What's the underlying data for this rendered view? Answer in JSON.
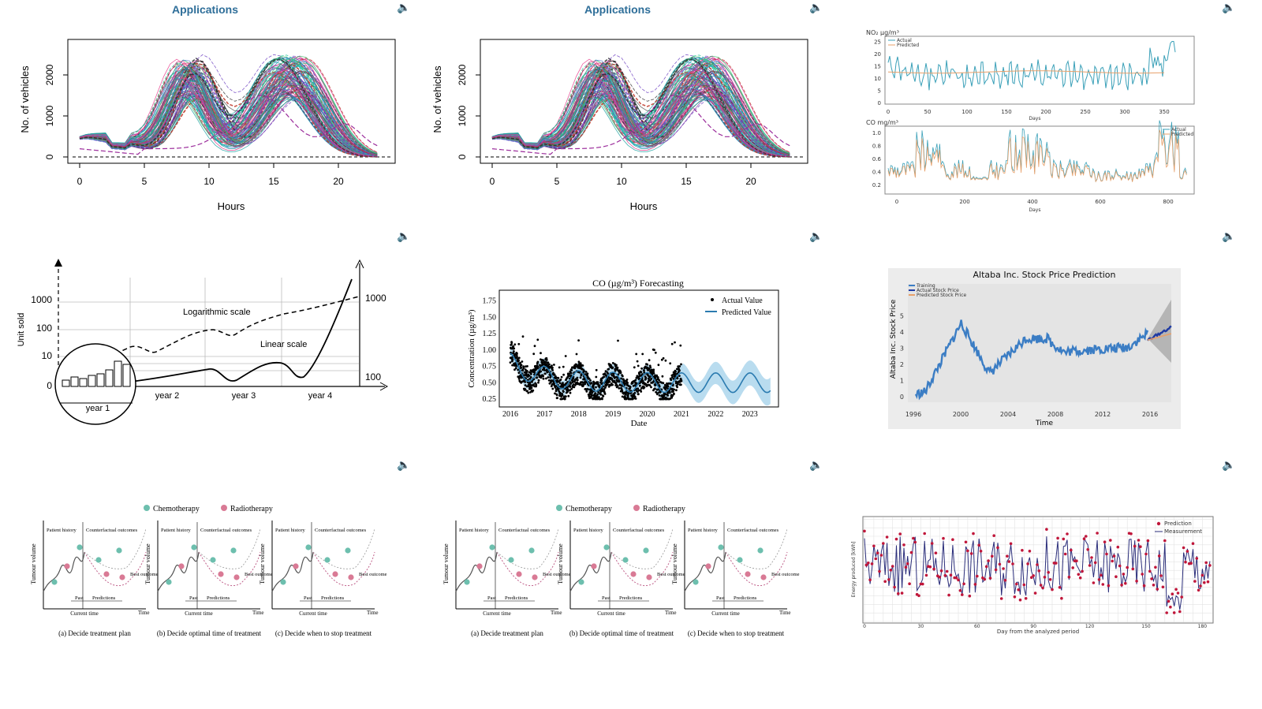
{
  "slides": {
    "s1": {
      "title": "Applications",
      "ylabel": "No. of vehicles",
      "xlabel": "Hours",
      "xticks": [
        "0",
        "5",
        "10",
        "15",
        "20"
      ],
      "yticks": [
        "0",
        "1000",
        "2000"
      ]
    },
    "s2": {
      "title": "Applications",
      "ylabel": "No. of vehicles",
      "xlabel": "Hours",
      "xticks": [
        "0",
        "5",
        "10",
        "15",
        "20"
      ],
      "yticks": [
        "0",
        "1000",
        "2000"
      ]
    },
    "s3": {
      "top": {
        "title": "NO₂ µg/m³",
        "legend": [
          "Actual",
          "Predicted"
        ],
        "xlabel": "Days",
        "xticks": [
          "0",
          "50",
          "100",
          "150",
          "200",
          "250",
          "300",
          "350"
        ],
        "yticks": [
          "0",
          "5",
          "10",
          "15",
          "20",
          "25"
        ]
      },
      "bottom": {
        "title": "CO mg/m³",
        "legend": [
          "Actual",
          "Predicted"
        ],
        "xlabel": "Days",
        "xticks": [
          "0",
          "200",
          "400",
          "600",
          "800"
        ],
        "yticks": [
          "0.2",
          "0.4",
          "0.6",
          "0.8",
          "1.0"
        ]
      }
    },
    "s4": {
      "ylabel": "Unit sold",
      "left_ticks": [
        "0",
        "10",
        "100",
        "1000"
      ],
      "right_ticks": [
        "100",
        "1000"
      ],
      "log_label": "Logarithmic scale",
      "lin_label": "Linear scale",
      "years": [
        "year 1",
        "year 2",
        "year 3",
        "year 4"
      ]
    },
    "s5": {
      "title": "CO (µg/m³) Forecasting",
      "ylabel": "Concentration (µg/m³)",
      "xlabel": "Date",
      "legend": [
        "Actual Value",
        "Predicted Value"
      ],
      "xticks": [
        "2016",
        "2017",
        "2018",
        "2019",
        "2020",
        "2021",
        "2022",
        "2023"
      ],
      "yticks": [
        "0.25",
        "0.50",
        "0.75",
        "1.00",
        "1.25",
        "1.50",
        "1.75"
      ]
    },
    "s6": {
      "title": "Altaba Inc. Stock Price Prediction",
      "ylabel": "Altaba Inc. Stock Price",
      "xlabel": "Time",
      "legend": [
        "Training",
        "Actual Stock Price",
        "Predicted Stock Price"
      ],
      "xticks": [
        "1996",
        "2000",
        "2004",
        "2008",
        "2012",
        "2016"
      ],
      "yticks": [
        "0",
        "1",
        "2",
        "3",
        "4",
        "5"
      ]
    },
    "s7": {
      "legend": [
        "Chemotherapy",
        "Radiotherapy"
      ],
      "panels": [
        "(a) Decide treatment plan",
        "(b) Decide optimal time of treatment",
        "(c) Decide when to stop treatment"
      ],
      "ylabel": "Tumour volume",
      "history": "Patient history",
      "counter": "Counterfactual outcomes",
      "past": "Past",
      "pred": "Predictions",
      "current": "Current time",
      "time": "Time",
      "best": "Best outcome"
    },
    "s8": {
      "legend": [
        "Chemotherapy",
        "Radiotherapy"
      ],
      "panels": [
        "(a) Decide treatment plan",
        "(b) Decide optimal time of treatment",
        "(c) Decide when to stop treatment"
      ],
      "ylabel": "Tumour volume",
      "history": "Patient history",
      "counter": "Counterfactual outcomes",
      "past": "Past",
      "pred": "Predictions",
      "current": "Current time",
      "time": "Time",
      "best": "Best outcome"
    },
    "s9": {
      "ylabel": "Energy produced [kWh]",
      "xlabel": "Day from the analyzed period",
      "legend": [
        "Prediction",
        "Measurement"
      ],
      "xticks": [
        "0",
        "30",
        "60",
        "90",
        "120",
        "150",
        "180"
      ]
    }
  },
  "colors": {
    "title_blue": "#2e6e99",
    "teal": "#3aa0b8",
    "orange": "#e8a06a",
    "stock_blue": "#3b7dc4",
    "crimson": "#c0163a",
    "navy": "#2a2d7a",
    "chemo": "#6dbfae",
    "radio": "#d97a95"
  },
  "icons": [
    "speaker-icon"
  ]
}
